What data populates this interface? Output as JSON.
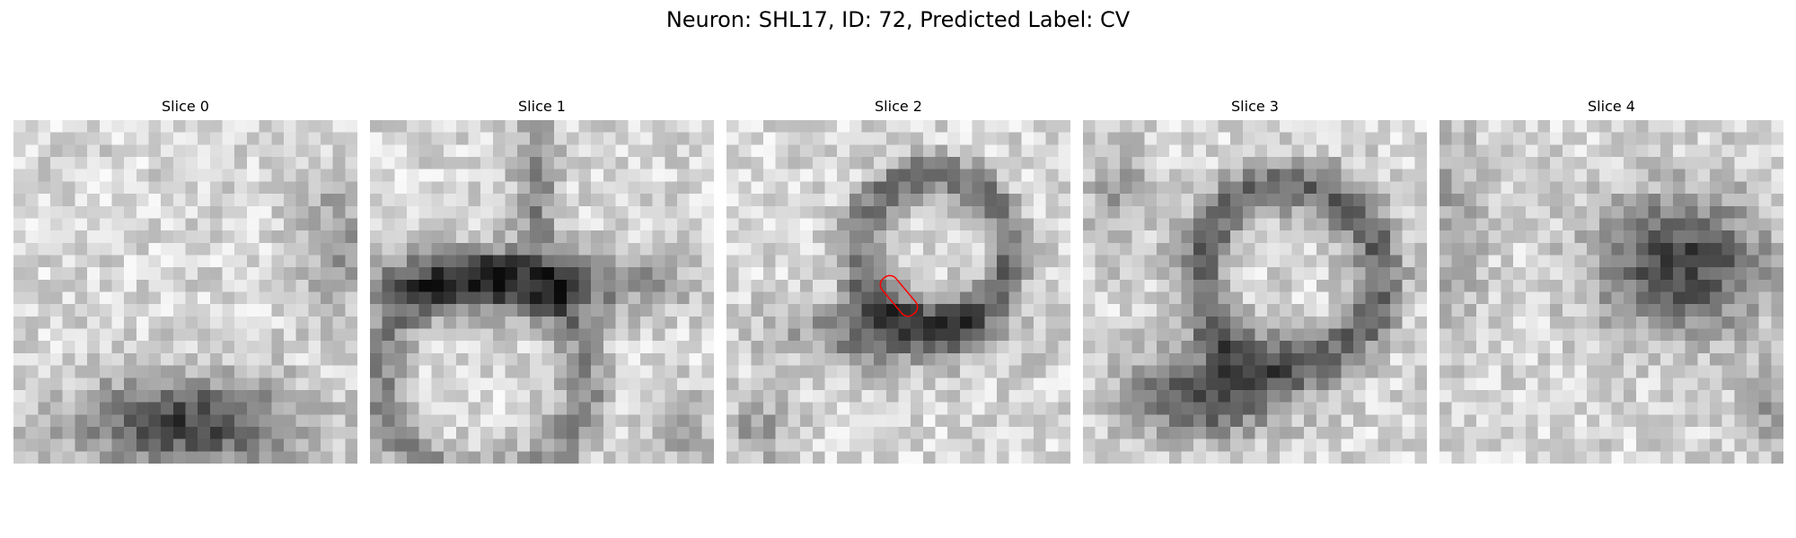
{
  "figure": {
    "title": "Neuron: SHL17, ID: 72, Predicted Label: CV"
  },
  "slices": [
    {
      "title": "Slice 0"
    },
    {
      "title": "Slice 1"
    },
    {
      "title": "Slice 2"
    },
    {
      "title": "Slice 3"
    },
    {
      "title": "Slice 4"
    }
  ],
  "grid_resolution": 28,
  "colormap": "gray",
  "annotation": {
    "slice_index": 2,
    "shape": "rounded-rectangle",
    "color": "#ff0000"
  }
}
